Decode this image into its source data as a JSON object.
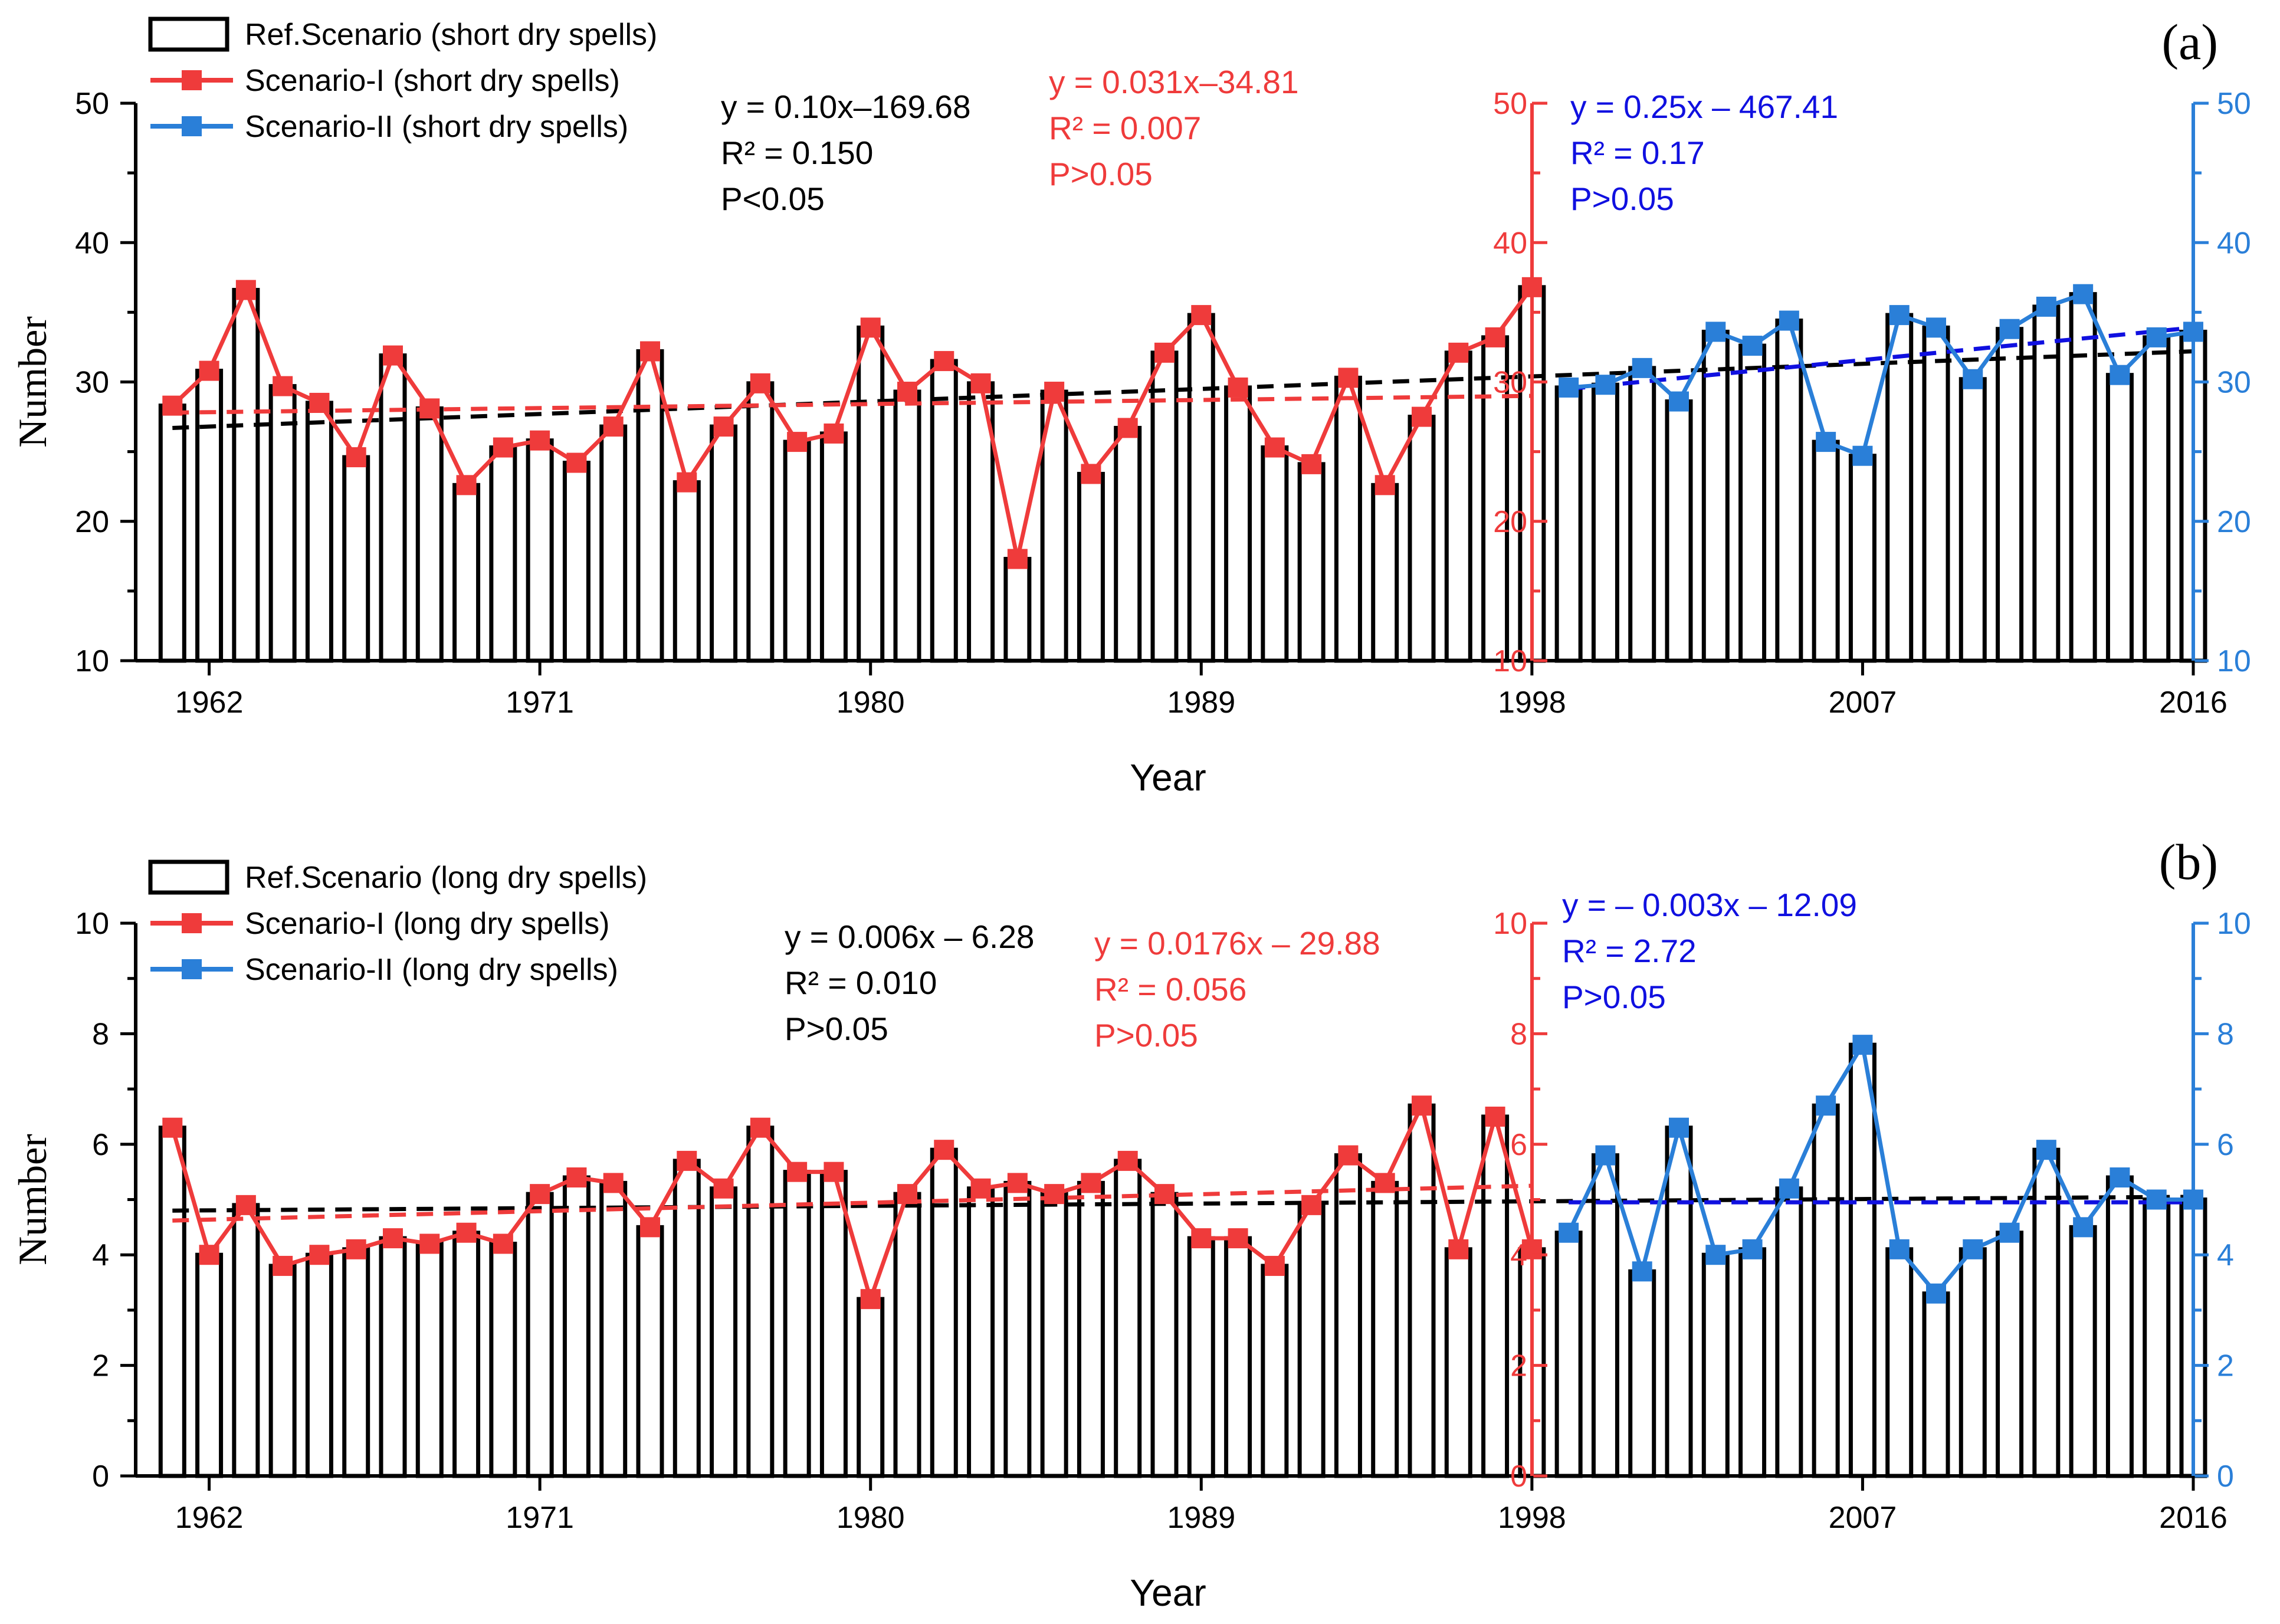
{
  "colors": {
    "ref": "#000000",
    "s1": "#ef3b3b",
    "s2": "#2a7fd8",
    "s2trend": "#1010e0"
  },
  "chart_data": [
    {
      "panel_label": "(a)",
      "type": "bar+line",
      "xlabel": "Year",
      "ylabel": "Number",
      "ylim": [
        10,
        50
      ],
      "yticks": [
        10,
        20,
        30,
        40,
        50
      ],
      "xticks": [
        1962,
        1971,
        1980,
        1989,
        1998,
        2007,
        2016
      ],
      "mid_axis_x": 1998,
      "legend": [
        "Ref.Scenario (short dry spells)",
        "Scenario-I (short dry spells)",
        "Scenario-II (short dry spells)"
      ],
      "years": [
        1961,
        1962,
        1963,
        1964,
        1965,
        1966,
        1967,
        1968,
        1969,
        1970,
        1971,
        1972,
        1973,
        1974,
        1975,
        1976,
        1977,
        1978,
        1979,
        1980,
        1981,
        1982,
        1983,
        1984,
        1985,
        1986,
        1987,
        1988,
        1989,
        1990,
        1991,
        1992,
        1993,
        1994,
        1995,
        1996,
        1997,
        1998,
        1999,
        2000,
        2001,
        2002,
        2003,
        2004,
        2005,
        2006,
        2007,
        2008,
        2009,
        2010,
        2011,
        2012,
        2013,
        2014,
        2015,
        2016
      ],
      "series": [
        {
          "name": "Ref.Scenario (short dry spells)",
          "kind": "bar",
          "values": [
            28.3,
            30.8,
            36.6,
            29.7,
            28.5,
            24.6,
            31.9,
            28.1,
            22.6,
            25.3,
            25.8,
            24.2,
            26.8,
            32.2,
            22.8,
            26.8,
            29.9,
            25.7,
            26.3,
            33.9,
            29.3,
            31.5,
            29.9,
            17.3,
            29.3,
            23.4,
            26.7,
            32.1,
            34.8,
            29.6,
            25.3,
            24.1,
            30.3,
            22.6,
            27.5,
            32.1,
            33.2,
            36.8,
            29.6,
            29.8,
            31.0,
            28.6,
            33.6,
            32.6,
            34.4,
            25.7,
            24.7,
            34.8,
            33.9,
            30.2,
            33.8,
            35.4,
            36.3,
            30.5,
            33.2,
            33.6
          ]
        },
        {
          "name": "Scenario-I (short dry spells)",
          "kind": "line",
          "from": 1961,
          "to": 1998,
          "values": [
            28.3,
            30.8,
            36.6,
            29.7,
            28.5,
            24.6,
            31.9,
            28.1,
            22.6,
            25.3,
            25.8,
            24.2,
            26.8,
            32.2,
            22.8,
            26.8,
            29.9,
            25.7,
            26.3,
            33.9,
            29.3,
            31.5,
            29.9,
            17.3,
            29.3,
            23.4,
            26.7,
            32.1,
            34.8,
            29.6,
            25.3,
            24.1,
            30.3,
            22.6,
            27.5,
            32.1,
            33.2,
            36.8
          ]
        },
        {
          "name": "Scenario-II (short dry spells)",
          "kind": "line",
          "from": 1999,
          "to": 2016,
          "values": [
            29.6,
            29.8,
            31.0,
            28.6,
            33.6,
            32.6,
            34.4,
            25.7,
            24.7,
            34.8,
            33.9,
            30.2,
            33.8,
            35.4,
            36.3,
            30.5,
            33.2,
            33.6
          ]
        }
      ],
      "trends": [
        {
          "series": "ref",
          "from": 1961,
          "to": 2016,
          "y0": 26.7,
          "y1": 32.2
        },
        {
          "series": "s1",
          "from": 1961,
          "to": 1998,
          "y0": 27.8,
          "y1": 29.0
        },
        {
          "series": "s2",
          "from": 1999,
          "to": 2016,
          "y0": 29.5,
          "y1": 33.9
        }
      ],
      "equations": {
        "ref": [
          "y = 0.10x–169.68",
          "R² = 0.150",
          "P<0.05"
        ],
        "s1": [
          "y = 0.031x–34.81",
          "R² = 0.007",
          "P>0.05"
        ],
        "s2": [
          "y = 0.25x – 467.41",
          "R² = 0.17",
          "P>0.05"
        ]
      }
    },
    {
      "panel_label": "(b)",
      "type": "bar+line",
      "xlabel": "Year",
      "ylabel": "Number",
      "ylim": [
        0,
        10
      ],
      "yticks": [
        0,
        2,
        4,
        6,
        8,
        10
      ],
      "xticks": [
        1962,
        1971,
        1980,
        1989,
        1998,
        2007,
        2016
      ],
      "mid_axis_x": 1998,
      "legend": [
        "Ref.Scenario (long dry spells)",
        "Scenario-I (long dry spells)",
        "Scenario-II (long dry spells)"
      ],
      "years": [
        1961,
        1962,
        1963,
        1964,
        1965,
        1966,
        1967,
        1968,
        1969,
        1970,
        1971,
        1972,
        1973,
        1974,
        1975,
        1976,
        1977,
        1978,
        1979,
        1980,
        1981,
        1982,
        1983,
        1984,
        1985,
        1986,
        1987,
        1988,
        1989,
        1990,
        1991,
        1992,
        1993,
        1994,
        1995,
        1996,
        1997,
        1998,
        1999,
        2000,
        2001,
        2002,
        2003,
        2004,
        2005,
        2006,
        2007,
        2008,
        2009,
        2010,
        2011,
        2012,
        2013,
        2014,
        2015,
        2016
      ],
      "series": [
        {
          "name": "Ref.Scenario (long dry spells)",
          "kind": "bar",
          "values": [
            6.3,
            4.0,
            4.9,
            3.8,
            4.0,
            4.1,
            4.3,
            4.2,
            4.4,
            4.2,
            5.1,
            5.4,
            5.3,
            4.5,
            5.7,
            5.2,
            6.3,
            5.5,
            5.5,
            3.2,
            5.1,
            5.9,
            5.2,
            5.3,
            5.1,
            5.3,
            5.7,
            5.1,
            4.3,
            4.3,
            3.8,
            4.9,
            5.8,
            5.3,
            6.7,
            4.1,
            6.5,
            4.1,
            4.4,
            5.8,
            3.7,
            6.3,
            4.0,
            4.1,
            5.2,
            6.7,
            7.8,
            4.1,
            3.3,
            4.1,
            4.4,
            5.9,
            4.5,
            5.4,
            5.0,
            5.0
          ]
        },
        {
          "name": "Scenario-I (long dry spells)",
          "kind": "line",
          "from": 1961,
          "to": 1998,
          "values": [
            6.3,
            4.0,
            4.9,
            3.8,
            4.0,
            4.1,
            4.3,
            4.2,
            4.4,
            4.2,
            5.1,
            5.4,
            5.3,
            4.5,
            5.7,
            5.2,
            6.3,
            5.5,
            5.5,
            3.2,
            5.1,
            5.9,
            5.2,
            5.3,
            5.1,
            5.3,
            5.7,
            5.1,
            4.3,
            4.3,
            3.8,
            4.9,
            5.8,
            5.3,
            6.7,
            4.1,
            6.5,
            4.1
          ]
        },
        {
          "name": "Scenario-II (long dry spells)",
          "kind": "line",
          "from": 1999,
          "to": 2016,
          "values": [
            4.4,
            5.8,
            3.7,
            6.3,
            4.0,
            4.1,
            5.2,
            6.7,
            7.8,
            4.1,
            3.3,
            4.1,
            4.4,
            5.9,
            4.5,
            5.4,
            5.0,
            5.0
          ]
        }
      ],
      "trends": [
        {
          "series": "ref",
          "from": 1961,
          "to": 2016,
          "y0": 4.8,
          "y1": 5.05
        },
        {
          "series": "s1",
          "from": 1961,
          "to": 1998,
          "y0": 4.62,
          "y1": 5.25
        },
        {
          "series": "s2",
          "from": 1999,
          "to": 2016,
          "y0": 4.95,
          "y1": 4.95
        }
      ],
      "equations": {
        "ref": [
          "y = 0.006x – 6.28",
          "R² = 0.010",
          "P>0.05"
        ],
        "s1": [
          "y = 0.0176x – 29.88",
          "R² = 0.056",
          "P>0.05"
        ],
        "s2": [
          "y = – 0.003x – 12.09",
          "R² = 2.72",
          "P>0.05"
        ]
      }
    }
  ]
}
